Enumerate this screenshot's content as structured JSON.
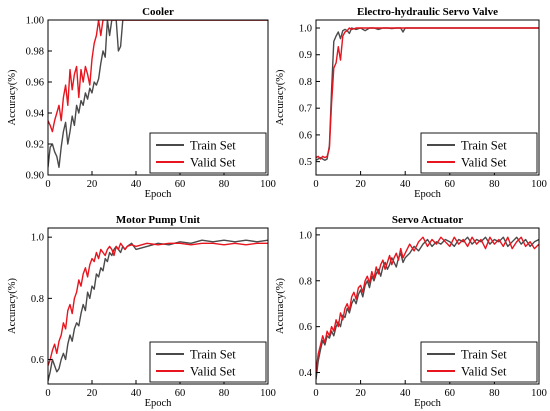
{
  "colors": {
    "train": "#4a4a4a",
    "valid": "#e8141e"
  },
  "chart_data": [
    {
      "type": "line",
      "title": "Cooler",
      "xlabel": "Epoch",
      "ylabel": "Accuracy(%)",
      "xlim": [
        0,
        100
      ],
      "ylim": [
        0.9,
        1.0
      ],
      "xticks": [
        0,
        20,
        40,
        60,
        80,
        100
      ],
      "yticks": [
        0.9,
        0.92,
        0.94,
        0.96,
        0.98,
        1.0
      ],
      "ytick_labels": [
        "0.90",
        "0.92",
        "0.94",
        "0.96",
        "0.98",
        "1.00"
      ],
      "legend_position": "bottom-right",
      "series": [
        {
          "name": "Train Set",
          "x": [
            0,
            1,
            2,
            3,
            4,
            5,
            6,
            7,
            8,
            9,
            10,
            11,
            12,
            13,
            14,
            15,
            16,
            17,
            18,
            19,
            20,
            21,
            22,
            23,
            24,
            25,
            26,
            27,
            28,
            29,
            30,
            31,
            32,
            33,
            34,
            35,
            40,
            50,
            60,
            70,
            80,
            90,
            100
          ],
          "y": [
            0.905,
            0.918,
            0.92,
            0.915,
            0.912,
            0.905,
            0.918,
            0.928,
            0.934,
            0.92,
            0.928,
            0.938,
            0.932,
            0.945,
            0.94,
            0.948,
            0.945,
            0.953,
            0.949,
            0.956,
            0.953,
            0.96,
            0.958,
            0.962,
            0.972,
            0.98,
            0.976,
            1.0,
            0.99,
            1.0,
            1.0,
            1.0,
            0.98,
            0.983,
            1.0,
            1.0,
            1.0,
            1.0,
            1.0,
            1.0,
            1.0,
            1.0,
            1.0
          ]
        },
        {
          "name": "Valid Set",
          "x": [
            0,
            1,
            2,
            3,
            4,
            5,
            6,
            7,
            8,
            9,
            10,
            11,
            12,
            13,
            14,
            15,
            16,
            17,
            18,
            19,
            20,
            21,
            22,
            23,
            24,
            25,
            26,
            30,
            40,
            50,
            60,
            70,
            80,
            90,
            100
          ],
          "y": [
            0.935,
            0.932,
            0.928,
            0.935,
            0.94,
            0.945,
            0.935,
            0.95,
            0.958,
            0.945,
            0.968,
            0.955,
            0.965,
            0.97,
            0.95,
            0.968,
            0.96,
            0.97,
            0.965,
            0.958,
            0.975,
            0.985,
            0.99,
            1.0,
            0.99,
            1.0,
            1.0,
            1.0,
            1.0,
            1.0,
            1.0,
            1.0,
            1.0,
            1.0,
            1.0
          ]
        }
      ]
    },
    {
      "type": "line",
      "title": "Electro-hydraulic Servo Valve",
      "xlabel": "Epoch",
      "ylabel": "Accuracy(%)",
      "xlim": [
        0,
        100
      ],
      "ylim": [
        0.45,
        1.03
      ],
      "xticks": [
        0,
        20,
        40,
        60,
        80,
        100
      ],
      "yticks": [
        0.5,
        0.6,
        0.7,
        0.8,
        0.9,
        1.0
      ],
      "ytick_labels": [
        "0.5",
        "0.6",
        "0.7",
        "0.8",
        "0.9",
        "1.0"
      ],
      "legend_position": "bottom-right",
      "series": [
        {
          "name": "Train Set",
          "x": [
            0,
            1,
            2,
            3,
            4,
            5,
            6,
            7,
            8,
            9,
            10,
            11,
            12,
            13,
            14,
            15,
            16,
            18,
            20,
            22,
            24,
            26,
            28,
            30,
            32,
            34,
            36,
            38,
            39,
            40,
            42,
            45,
            50,
            55,
            60,
            70,
            80,
            90,
            100
          ],
          "y": [
            0.505,
            0.51,
            0.515,
            0.51,
            0.505,
            0.51,
            0.56,
            0.77,
            0.95,
            0.97,
            0.985,
            0.96,
            0.99,
            0.995,
            0.99,
            0.98,
            1.0,
            0.995,
            1.0,
            0.99,
            1.0,
            1.0,
            0.995,
            1.0,
            1.0,
            0.998,
            1.0,
            1.0,
            0.985,
            1.0,
            1.0,
            1.0,
            1.0,
            1.0,
            1.0,
            1.0,
            1.0,
            1.0,
            1.0
          ]
        },
        {
          "name": "Valid Set",
          "x": [
            0,
            1,
            2,
            3,
            4,
            5,
            6,
            7,
            8,
            9,
            10,
            11,
            12,
            13,
            14,
            15,
            16,
            18,
            20,
            22,
            24,
            26,
            30,
            35,
            40,
            50,
            60,
            70,
            80,
            90,
            100
          ],
          "y": [
            0.515,
            0.52,
            0.51,
            0.52,
            0.515,
            0.52,
            0.55,
            0.72,
            0.85,
            0.87,
            0.93,
            0.88,
            0.97,
            0.985,
            0.99,
            1.0,
            0.995,
            1.0,
            1.0,
            1.0,
            1.0,
            1.0,
            1.0,
            1.0,
            1.0,
            1.0,
            1.0,
            1.0,
            1.0,
            1.0,
            1.0
          ]
        }
      ]
    },
    {
      "type": "line",
      "title": "Motor Pump Unit",
      "xlabel": "Epoch",
      "ylabel": "Accuracy(%)",
      "xlim": [
        0,
        100
      ],
      "ylim": [
        0.52,
        1.03
      ],
      "xticks": [
        0,
        20,
        40,
        60,
        80,
        100
      ],
      "yticks": [
        0.6,
        0.8,
        1.0
      ],
      "ytick_labels": [
        "0.6",
        "0.8",
        "1.0"
      ],
      "legend_position": "bottom-right",
      "series": [
        {
          "name": "Train Set",
          "x": [
            0,
            1,
            2,
            3,
            4,
            5,
            6,
            7,
            8,
            9,
            10,
            11,
            12,
            13,
            14,
            15,
            16,
            17,
            18,
            19,
            20,
            21,
            22,
            23,
            24,
            25,
            26,
            27,
            28,
            29,
            30,
            31,
            32,
            33,
            34,
            35,
            36,
            38,
            40,
            45,
            50,
            55,
            60,
            65,
            70,
            75,
            80,
            85,
            90,
            95,
            100
          ],
          "y": [
            0.53,
            0.56,
            0.6,
            0.58,
            0.56,
            0.57,
            0.6,
            0.62,
            0.6,
            0.65,
            0.68,
            0.66,
            0.7,
            0.72,
            0.71,
            0.75,
            0.78,
            0.76,
            0.82,
            0.8,
            0.84,
            0.83,
            0.88,
            0.87,
            0.9,
            0.89,
            0.93,
            0.92,
            0.95,
            0.94,
            0.96,
            0.97,
            0.96,
            0.95,
            0.97,
            0.96,
            0.97,
            0.98,
            0.96,
            0.97,
            0.98,
            0.975,
            0.985,
            0.98,
            0.99,
            0.985,
            0.99,
            0.985,
            0.99,
            0.985,
            0.99
          ]
        },
        {
          "name": "Valid Set",
          "x": [
            0,
            1,
            2,
            3,
            4,
            5,
            6,
            7,
            8,
            9,
            10,
            11,
            12,
            13,
            14,
            15,
            16,
            17,
            18,
            19,
            20,
            21,
            22,
            23,
            24,
            25,
            26,
            27,
            28,
            29,
            30,
            31,
            32,
            33,
            34,
            35,
            36,
            38,
            40,
            45,
            50,
            55,
            60,
            65,
            70,
            75,
            80,
            85,
            90,
            95,
            100
          ],
          "y": [
            0.58,
            0.6,
            0.63,
            0.65,
            0.62,
            0.66,
            0.68,
            0.72,
            0.7,
            0.76,
            0.78,
            0.75,
            0.8,
            0.82,
            0.86,
            0.84,
            0.88,
            0.9,
            0.87,
            0.91,
            0.93,
            0.92,
            0.95,
            0.93,
            0.96,
            0.95,
            0.94,
            0.96,
            0.97,
            0.96,
            0.94,
            0.97,
            0.96,
            0.98,
            0.97,
            0.96,
            0.97,
            0.975,
            0.97,
            0.98,
            0.975,
            0.98,
            0.98,
            0.975,
            0.98,
            0.98,
            0.975,
            0.98,
            0.975,
            0.98,
            0.98
          ]
        }
      ]
    },
    {
      "type": "line",
      "title": "Servo Actuator",
      "xlabel": "Epoch",
      "ylabel": "Accuracy(%)",
      "xlim": [
        0,
        100
      ],
      "ylim": [
        0.35,
        1.03
      ],
      "xticks": [
        0,
        20,
        40,
        60,
        80,
        100
      ],
      "yticks": [
        0.4,
        0.6,
        0.8,
        1.0
      ],
      "ytick_labels": [
        "0.4",
        "0.6",
        "0.8",
        "1.0"
      ],
      "legend_position": "bottom-right",
      "series": [
        {
          "name": "Train Set",
          "x": [
            0,
            1,
            2,
            3,
            4,
            5,
            6,
            7,
            8,
            9,
            10,
            11,
            12,
            13,
            14,
            15,
            16,
            17,
            18,
            19,
            20,
            21,
            22,
            23,
            24,
            25,
            26,
            27,
            28,
            29,
            30,
            31,
            32,
            33,
            34,
            35,
            36,
            37,
            38,
            39,
            40,
            42,
            44,
            46,
            48,
            50,
            52,
            54,
            56,
            58,
            60,
            62,
            64,
            66,
            68,
            70,
            72,
            74,
            76,
            78,
            80,
            82,
            84,
            86,
            88,
            90,
            92,
            94,
            96,
            98,
            100
          ],
          "y": [
            0.37,
            0.45,
            0.5,
            0.54,
            0.52,
            0.56,
            0.55,
            0.58,
            0.56,
            0.6,
            0.62,
            0.6,
            0.65,
            0.64,
            0.68,
            0.66,
            0.7,
            0.72,
            0.7,
            0.74,
            0.76,
            0.73,
            0.78,
            0.8,
            0.77,
            0.82,
            0.8,
            0.83,
            0.85,
            0.82,
            0.86,
            0.88,
            0.85,
            0.87,
            0.9,
            0.88,
            0.86,
            0.9,
            0.92,
            0.88,
            0.9,
            0.92,
            0.95,
            0.93,
            0.96,
            0.98,
            0.95,
            0.97,
            0.96,
            0.98,
            0.97,
            0.95,
            0.98,
            0.97,
            0.99,
            0.96,
            0.98,
            0.97,
            0.99,
            0.96,
            0.98,
            0.97,
            0.99,
            0.95,
            0.97,
            0.99,
            0.96,
            0.98,
            0.95,
            0.97,
            0.98
          ]
        },
        {
          "name": "Valid Set",
          "x": [
            0,
            1,
            2,
            3,
            4,
            5,
            6,
            7,
            8,
            9,
            10,
            11,
            12,
            13,
            14,
            15,
            16,
            17,
            18,
            19,
            20,
            21,
            22,
            23,
            24,
            25,
            26,
            27,
            28,
            29,
            30,
            31,
            32,
            33,
            34,
            35,
            36,
            37,
            38,
            39,
            40,
            42,
            44,
            46,
            48,
            50,
            52,
            54,
            56,
            58,
            60,
            62,
            64,
            66,
            68,
            70,
            72,
            74,
            76,
            78,
            80,
            82,
            84,
            86,
            88,
            90,
            92,
            94,
            96,
            98,
            100
          ],
          "y": [
            0.4,
            0.48,
            0.52,
            0.56,
            0.53,
            0.58,
            0.56,
            0.6,
            0.58,
            0.63,
            0.6,
            0.66,
            0.63,
            0.68,
            0.7,
            0.67,
            0.73,
            0.75,
            0.72,
            0.77,
            0.78,
            0.75,
            0.8,
            0.82,
            0.79,
            0.84,
            0.81,
            0.86,
            0.83,
            0.87,
            0.89,
            0.85,
            0.88,
            0.91,
            0.87,
            0.9,
            0.92,
            0.89,
            0.94,
            0.9,
            0.92,
            0.96,
            0.93,
            0.97,
            0.99,
            0.95,
            0.98,
            0.96,
            0.99,
            0.97,
            0.95,
            0.99,
            0.96,
            0.98,
            0.95,
            0.99,
            0.96,
            0.98,
            0.94,
            0.99,
            0.96,
            0.98,
            0.95,
            0.99,
            0.94,
            0.97,
            0.99,
            0.95,
            0.97,
            0.94,
            0.96
          ]
        }
      ]
    }
  ]
}
